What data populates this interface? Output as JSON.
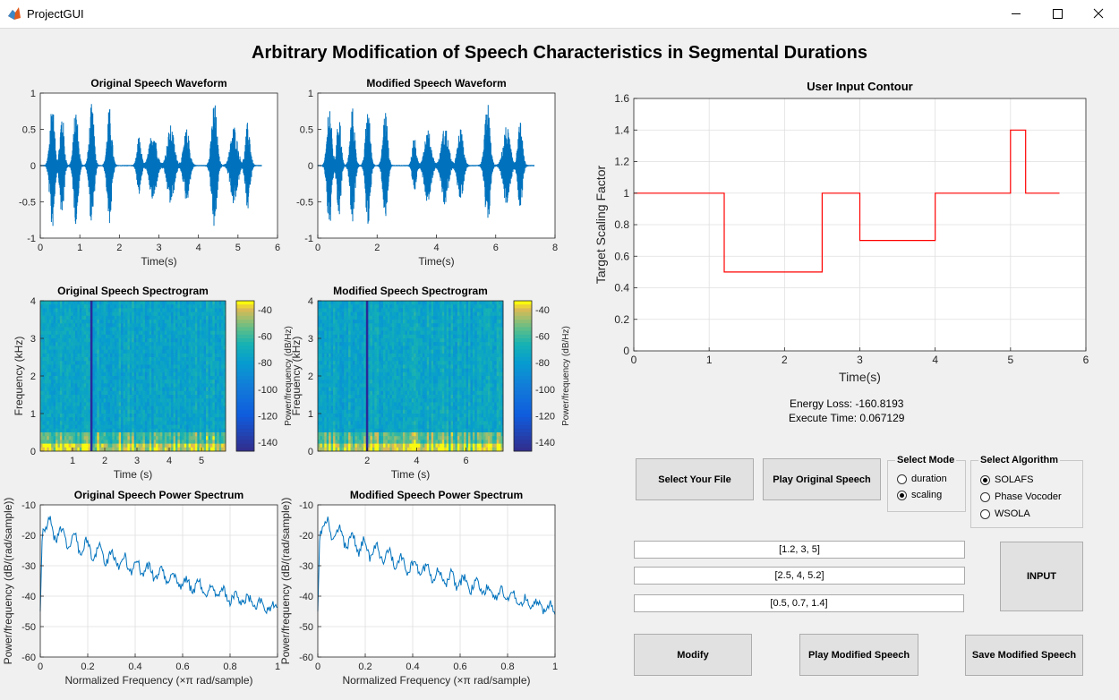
{
  "window": {
    "title": "ProjectGUI"
  },
  "main_title": "Arbitrary Modification of Speech Characteristics in Segmental Durations",
  "plots": {
    "orig_wave": {
      "title": "Original Speech Waveform",
      "xlabel": "Time(s)",
      "xticks": [
        "0",
        "1",
        "2",
        "3",
        "4",
        "5",
        "6"
      ],
      "yticks": [
        "1",
        "0.5",
        "0",
        "-0.5",
        "-1"
      ]
    },
    "mod_wave": {
      "title": "Modified Speech Waveform",
      "xlabel": "Time(s)",
      "xticks": [
        "0",
        "2",
        "4",
        "6",
        "8"
      ],
      "yticks": [
        "1",
        "0.5",
        "0",
        "-0.5",
        "-1"
      ]
    },
    "orig_spec": {
      "title": "Original Speech Spectrogram",
      "xlabel": "Time (s)",
      "ylabel": "Frequency (kHz)",
      "xticks": [
        "1",
        "2",
        "3",
        "4",
        "5"
      ],
      "yticks": [
        "4",
        "3",
        "2",
        "1",
        "0"
      ],
      "cbar_label": "Power/frequency (dB/Hz)",
      "cbar_ticks": [
        "-40",
        "-60",
        "-80",
        "-100",
        "-120",
        "-140"
      ]
    },
    "mod_spec": {
      "title": "Modified Speech Spectrogram",
      "xlabel": "Time (s)",
      "ylabel": "Frequency (kHz)",
      "xticks": [
        "2",
        "4",
        "6"
      ],
      "yticks": [
        "4",
        "3",
        "2",
        "1",
        "0"
      ],
      "cbar_label": "Power/frequency (dB/Hz)",
      "cbar_ticks": [
        "-40",
        "-60",
        "-80",
        "-100",
        "-120",
        "-140"
      ]
    },
    "orig_psd": {
      "title": "Original Speech Power Spectrum",
      "xlabel": "Normalized Frequency  (×π rad/sample)",
      "ylabel": "Power/frequency (dB/(rad/sample))",
      "xticks": [
        "0",
        "0.2",
        "0.4",
        "0.6",
        "0.8",
        "1"
      ],
      "yticks": [
        "-10",
        "-20",
        "-30",
        "-40",
        "-50",
        "-60"
      ]
    },
    "mod_psd": {
      "title": "Modified Speech Power Spectrum",
      "xlabel": "Normalized Frequency  (×π rad/sample)",
      "ylabel": "Power/frequency (dB/(rad/sample))",
      "xticks": [
        "0",
        "0.2",
        "0.4",
        "0.6",
        "0.8",
        "1"
      ],
      "yticks": [
        "-10",
        "-20",
        "-30",
        "-40",
        "-50",
        "-60"
      ]
    },
    "contour": {
      "title": "User Input Contour",
      "xlabel": "Time(s)",
      "ylabel": "Target Scaling Factor",
      "xticks": [
        "0",
        "1",
        "2",
        "3",
        "4",
        "5",
        "6"
      ],
      "yticks": [
        "1.6",
        "1.4",
        "1.2",
        "1",
        "0.8",
        "0.6",
        "0.4",
        "0.2",
        "0"
      ]
    }
  },
  "chart_data": [
    {
      "type": "line",
      "title": "User Input Contour",
      "xlabel": "Time(s)",
      "ylabel": "Target Scaling Factor",
      "xlim": [
        0,
        6
      ],
      "ylim": [
        0,
        1.6
      ],
      "grid": true,
      "x": [
        0,
        1.2,
        1.2,
        2.5,
        2.5,
        3,
        3,
        4,
        4,
        5,
        5,
        5.2,
        5.2,
        5.65
      ],
      "y": [
        1,
        1,
        0.5,
        0.5,
        1,
        1,
        0.7,
        0.7,
        1,
        1,
        1.4,
        1.4,
        1,
        1
      ],
      "color": "#ff0000"
    },
    {
      "type": "line",
      "title": "Original Speech Waveform",
      "xlabel": "Time(s)",
      "xlim": [
        0,
        6
      ],
      "ylim": [
        -1,
        1
      ],
      "duration": 5.6,
      "color": "#0072bd"
    },
    {
      "type": "line",
      "title": "Modified Speech Waveform",
      "xlabel": "Time(s)",
      "xlim": [
        0,
        8
      ],
      "ylim": [
        -1,
        1
      ],
      "duration": 7.3,
      "color": "#0072bd"
    },
    {
      "type": "heatmap",
      "title": "Original Speech Spectrogram",
      "xlabel": "Time (s)",
      "ylabel": "Frequency (kHz)",
      "ylim": [
        0,
        4
      ],
      "clim": [
        -150,
        -35
      ]
    },
    {
      "type": "heatmap",
      "title": "Modified Speech Spectrogram",
      "xlabel": "Time (s)",
      "ylabel": "Frequency (kHz)",
      "ylim": [
        0,
        4
      ],
      "clim": [
        -150,
        -35
      ]
    },
    {
      "type": "line",
      "title": "Original Speech Power Spectrum",
      "xlim": [
        0,
        1
      ],
      "ylim": [
        -60,
        -10
      ],
      "color": "#0072bd"
    },
    {
      "type": "line",
      "title": "Modified Speech Power Spectrum",
      "xlim": [
        0,
        1
      ],
      "ylim": [
        -60,
        -10
      ],
      "color": "#0072bd"
    }
  ],
  "stats": {
    "energy_loss": "Energy Loss: -160.8193",
    "execute_time": "Execute Time: 0.067129"
  },
  "buttons": {
    "select_file": "Select Your File",
    "play_original": "Play Original Speech",
    "input": "INPUT",
    "modify": "Modify",
    "play_modified": "Play Modified Speech",
    "save_modified": "Save Modified Speech"
  },
  "mode_group": {
    "title": "Select Mode",
    "options": [
      "duration",
      "scaling"
    ],
    "selected": "scaling"
  },
  "algo_group": {
    "title": "Select Algorithm",
    "options": [
      "SOLAFS",
      "Phase Vocoder",
      "WSOLA"
    ],
    "selected": "SOLAFS"
  },
  "inputs": {
    "field1": "[1.2, 3, 5]",
    "field2": "[2.5, 4, 5.2]",
    "field3": "[0.5, 0.7, 1.4]"
  },
  "colors": {
    "line": "#0072bd",
    "contour": "#ff0000",
    "background": "#f0f0f0"
  }
}
